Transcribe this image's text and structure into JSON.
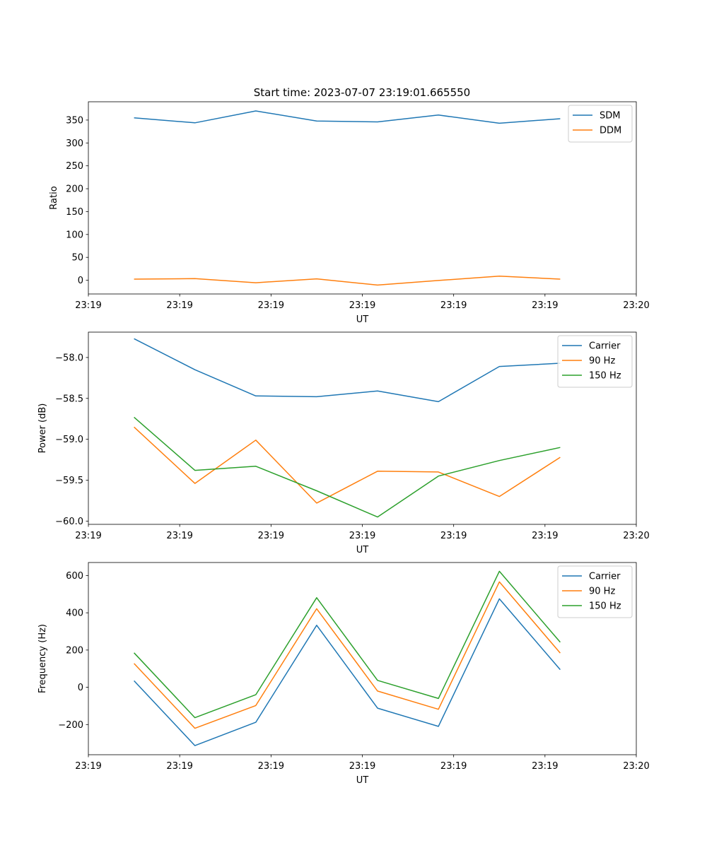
{
  "figure_title": "Start time: 2023-07-07 23:19:01.665550",
  "chart_data": [
    {
      "type": "line",
      "name": "ratio",
      "xlabel": "UT",
      "ylabel": "Ratio",
      "x": [
        0,
        1,
        2,
        3,
        4,
        5,
        6,
        7
      ],
      "xlim": [
        -0.75,
        8.25
      ],
      "ylim": [
        -30,
        390
      ],
      "xticks": [
        -0.75,
        0.75,
        2.25,
        3.75,
        5.25,
        6.75,
        8.25
      ],
      "xtick_labels": [
        "23:19",
        "23:19",
        "23:19",
        "23:19",
        "23:19",
        "23:19",
        "23:20"
      ],
      "yticks": [
        0,
        50,
        100,
        150,
        200,
        250,
        300,
        350
      ],
      "ytick_labels": [
        "0",
        "50",
        "100",
        "150",
        "200",
        "250",
        "300",
        "350"
      ],
      "legend_position": "top-right",
      "series": [
        {
          "name": "SDM",
          "color": "#1f77b4",
          "values": [
            355,
            344,
            370,
            348,
            346,
            361,
            343,
            353
          ]
        },
        {
          "name": "DDM",
          "color": "#ff7f0e",
          "values": [
            2.5,
            3.5,
            -5.5,
            3.0,
            -10.5,
            -0.5,
            9.0,
            2.5
          ]
        }
      ]
    },
    {
      "type": "line",
      "name": "power",
      "xlabel": "UT",
      "ylabel": "Power (dB)",
      "x": [
        0,
        1,
        2,
        3,
        4,
        5,
        6,
        7
      ],
      "xlim": [
        -0.75,
        8.25
      ],
      "ylim": [
        -60.04,
        -57.69
      ],
      "xticks": [
        -0.75,
        0.75,
        2.25,
        3.75,
        5.25,
        6.75,
        8.25
      ],
      "xtick_labels": [
        "23:19",
        "23:19",
        "23:19",
        "23:19",
        "23:19",
        "23:19",
        "23:20"
      ],
      "yticks": [
        -60.0,
        -59.5,
        -59.0,
        -58.5,
        -58.0
      ],
      "ytick_labels": [
        "−60.0",
        "−59.5",
        "−59.0",
        "−58.5",
        "−58.0"
      ],
      "legend_position": "top-right",
      "series": [
        {
          "name": "Carrier",
          "color": "#1f77b4",
          "values": [
            -57.77,
            -58.15,
            -58.47,
            -58.48,
            -58.41,
            -58.54,
            -58.11,
            -58.07
          ]
        },
        {
          "name": "90 Hz",
          "color": "#ff7f0e",
          "values": [
            -58.85,
            -59.54,
            -59.01,
            -59.78,
            -59.39,
            -59.4,
            -59.7,
            -59.22
          ]
        },
        {
          "name": "150 Hz",
          "color": "#2ca02c",
          "values": [
            -58.73,
            -59.38,
            -59.33,
            -59.63,
            -59.95,
            -59.45,
            -59.26,
            -59.1
          ]
        }
      ]
    },
    {
      "type": "line",
      "name": "frequency",
      "xlabel": "UT",
      "ylabel": "Frequency (Hz)",
      "x": [
        0,
        1,
        2,
        3,
        4,
        5,
        6,
        7
      ],
      "xlim": [
        -0.75,
        8.25
      ],
      "ylim": [
        -362,
        670
      ],
      "xticks": [
        -0.75,
        0.75,
        2.25,
        3.75,
        5.25,
        6.75,
        8.25
      ],
      "xtick_labels": [
        "23:19",
        "23:19",
        "23:19",
        "23:19",
        "23:19",
        "23:19",
        "23:20"
      ],
      "yticks": [
        -200,
        0,
        200,
        400,
        600
      ],
      "ytick_labels": [
        "−200",
        "0",
        "200",
        "400",
        "600"
      ],
      "legend_position": "top-right",
      "series": [
        {
          "name": "Carrier",
          "color": "#1f77b4",
          "values": [
            35,
            -313,
            -188,
            333,
            -112,
            -210,
            475,
            95
          ]
        },
        {
          "name": "90 Hz",
          "color": "#ff7f0e",
          "values": [
            128,
            -220,
            -98,
            422,
            -20,
            -118,
            566,
            184
          ]
        },
        {
          "name": "150 Hz",
          "color": "#2ca02c",
          "values": [
            185,
            -163,
            -40,
            481,
            37,
            -60,
            623,
            242
          ]
        }
      ]
    }
  ]
}
